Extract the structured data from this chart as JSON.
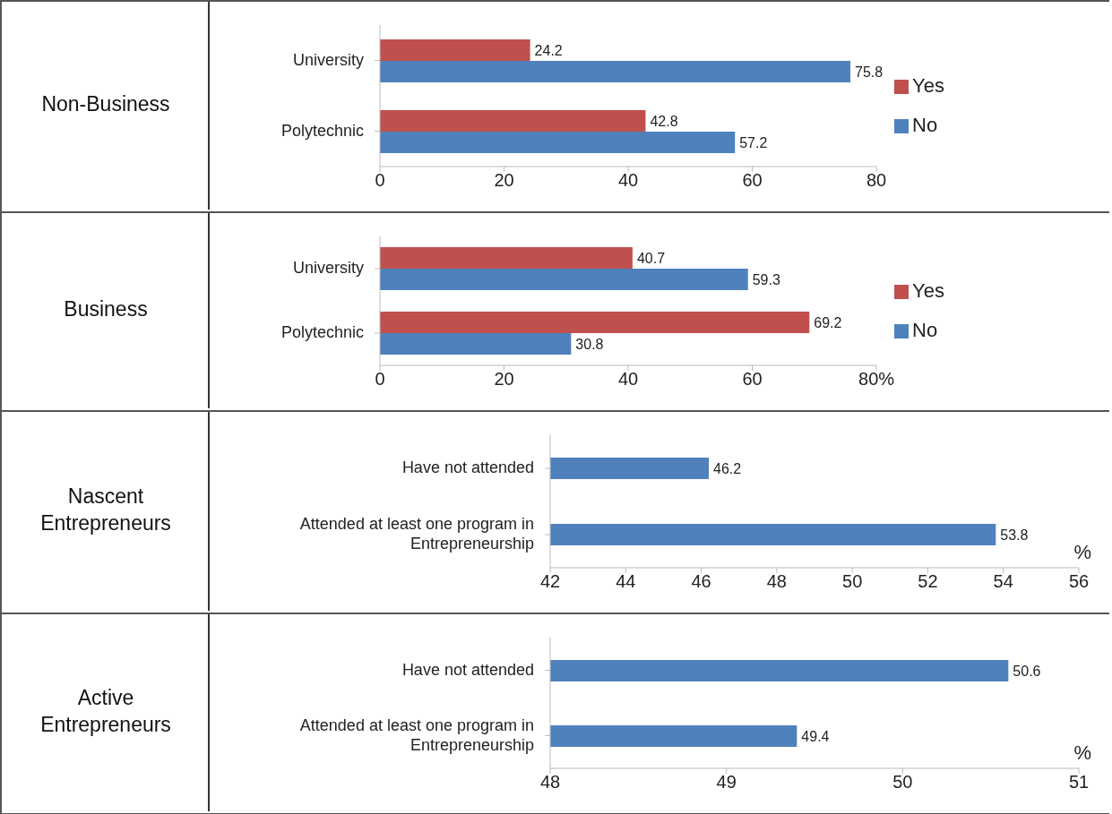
{
  "chart_data": [
    {
      "type": "bar",
      "orientation": "horizontal",
      "ylabel": "Non-Business",
      "categories": [
        "University",
        "Polytechnic"
      ],
      "series": [
        {
          "name": "Yes",
          "color": "#c0504d",
          "values": [
            24.2,
            42.8
          ]
        },
        {
          "name": "No",
          "color": "#4f81bd",
          "values": [
            75.8,
            57.2
          ]
        }
      ],
      "xlim": [
        0,
        80
      ],
      "xticks": [
        0,
        20,
        40,
        60,
        80
      ],
      "data_labels": true,
      "legend": "right",
      "grid": false
    },
    {
      "type": "bar",
      "orientation": "horizontal",
      "ylabel": "Business",
      "categories": [
        "University",
        "Polytechnic"
      ],
      "series": [
        {
          "name": "Yes",
          "color": "#c0504d",
          "values": [
            40.7,
            69.2
          ]
        },
        {
          "name": "No",
          "color": "#4f81bd",
          "values": [
            59.3,
            30.8
          ]
        }
      ],
      "xlim": [
        0,
        80
      ],
      "xticks": [
        0,
        20,
        40,
        60,
        {
          "value": 80,
          "label": "80%"
        }
      ],
      "data_labels": true,
      "legend": "right",
      "grid": false
    },
    {
      "type": "bar",
      "orientation": "horizontal",
      "ylabel": "Nascent Entrepreneurs",
      "xlabel": "%",
      "categories": [
        "Have not attended",
        "Attended at least one program in Entrepreneurship"
      ],
      "values": [
        46.2,
        53.8
      ],
      "color": "#4f81bd",
      "xlim": [
        42,
        56
      ],
      "xticks": [
        42,
        44,
        46,
        48,
        50,
        52,
        54,
        56
      ],
      "data_labels": true,
      "grid": false
    },
    {
      "type": "bar",
      "orientation": "horizontal",
      "ylabel": "Active Entrepreneurs",
      "xlabel": "%",
      "categories": [
        "Have not attended",
        "Attended at least one program in Entrepreneurship"
      ],
      "values": [
        50.6,
        49.4
      ],
      "color": "#4f81bd",
      "xlim": [
        48,
        51
      ],
      "xticks": [
        48,
        49,
        50,
        51
      ],
      "data_labels": true,
      "grid": false
    }
  ]
}
